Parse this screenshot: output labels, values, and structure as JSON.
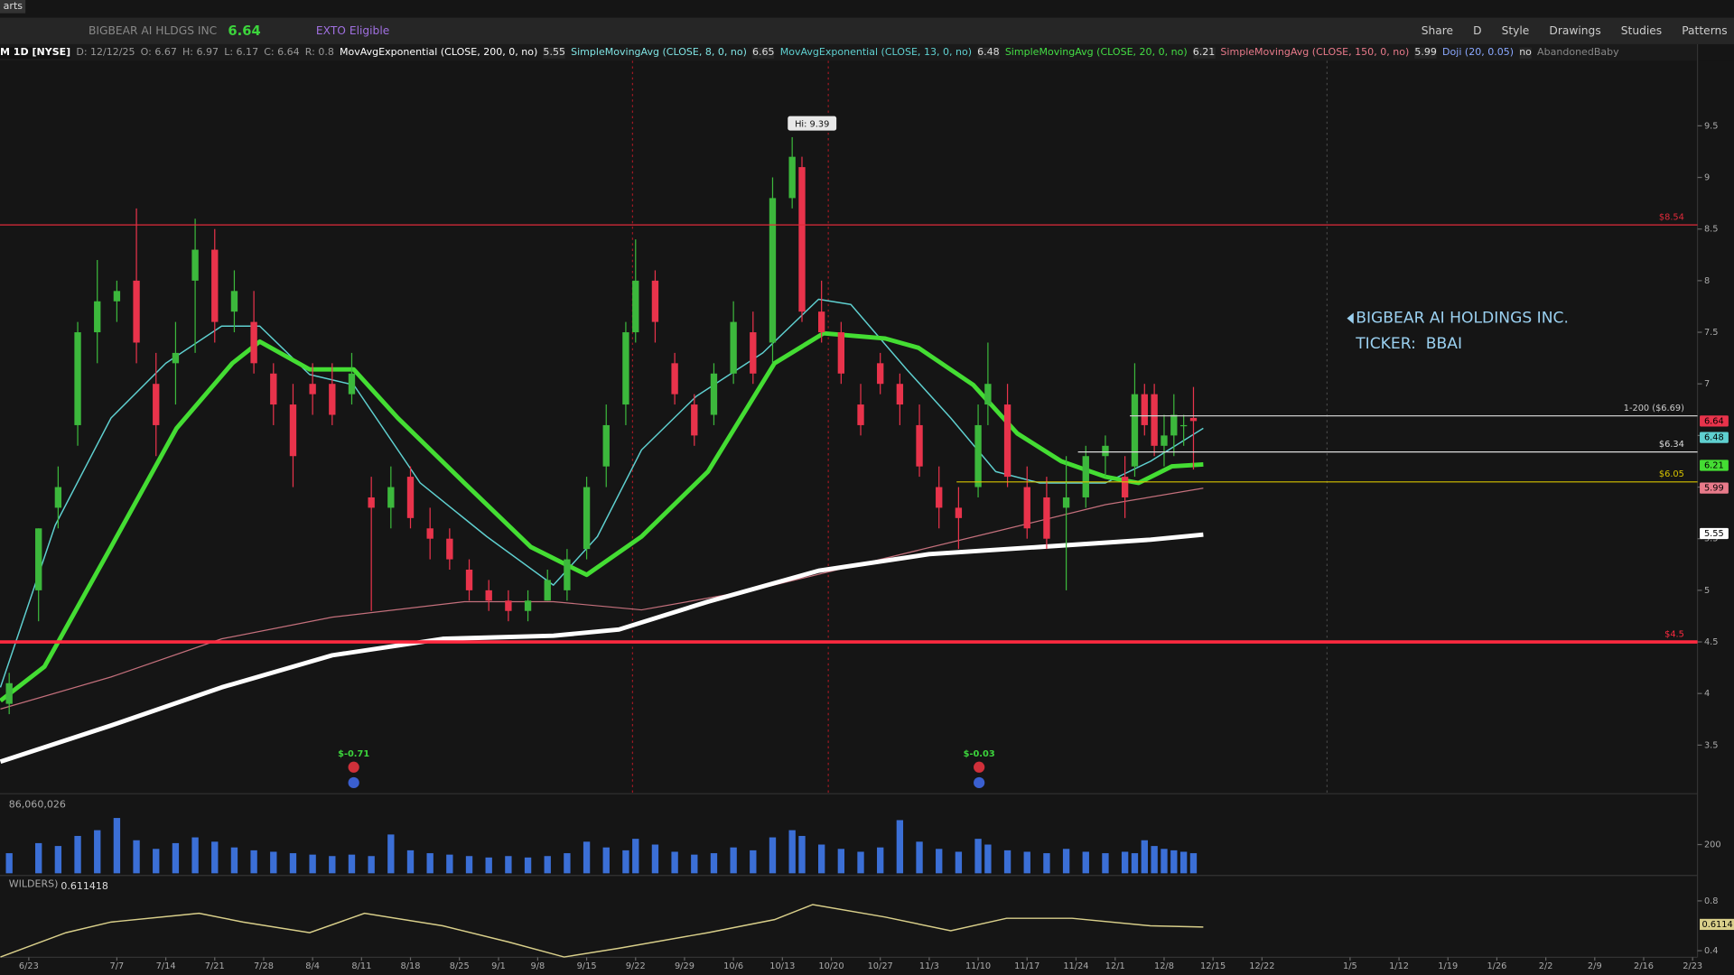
{
  "toolbar": {
    "tab": "arts",
    "symbol": "BIGBEAR AI HLDGS INC",
    "last": "6.64",
    "badge": "EXTO Eligible",
    "buttons": [
      "Share",
      "D",
      "Style",
      "Drawings",
      "Studies",
      "Patterns"
    ]
  },
  "header": {
    "period": "M 1D [NYSE]",
    "ohlc": [
      "D: 12/12/25",
      "O: 6.67",
      "H: 6.97",
      "L: 6.17",
      "C: 6.64",
      "R: 0.8"
    ],
    "studies": [
      {
        "label": "MovAvgExponential (CLOSE, 200, 0, no)",
        "value": "5.55",
        "color": "#ffffff"
      },
      {
        "label": "SimpleMovingAvg (CLOSE, 8, 0, no)",
        "value": "6.65",
        "color": "#7fe3e3"
      },
      {
        "label": "MovAvgExponential (CLOSE, 13, 0, no)",
        "value": "6.48",
        "color": "#5fd0d0"
      },
      {
        "label": "SimpleMovingAvg (CLOSE, 20, 0, no)",
        "value": "6.21",
        "color": "#44dd44"
      },
      {
        "label": "SimpleMovingAvg (CLOSE, 150, 0, no)",
        "value": "5.99",
        "color": "#e87a8a"
      },
      {
        "label": "Doji (20, 0.05)",
        "value": "no",
        "color": "#8aa8ff"
      },
      {
        "label": "AbandonedBaby",
        "value": "",
        "color": "#888888"
      }
    ]
  },
  "annotation": {
    "line1": "BIGBEAR AI HOLDINGS INC.",
    "line2": "TICKER:  BBAI"
  },
  "chart_data": [
    {
      "type": "candlestick",
      "xlim": [
        -2.94,
        170.5
      ],
      "ylim": [
        3.04,
        10.13
      ],
      "yticks": [
        9.5,
        9,
        8.5,
        8,
        7.5,
        7,
        6.5,
        6,
        5.5,
        5,
        4.5,
        4,
        3.5
      ],
      "up_color": "#3cb83c",
      "down_color": "#e8334b",
      "x": [
        -2,
        1,
        3,
        5,
        7,
        9,
        11,
        13,
        15,
        17,
        19,
        21,
        23,
        25,
        27,
        29,
        31,
        33,
        35,
        37,
        39,
        41,
        43,
        45,
        47,
        49,
        51,
        53,
        55,
        57,
        59,
        61,
        62,
        64,
        66,
        68,
        70,
        72,
        74,
        76,
        78,
        79,
        81,
        83,
        85,
        87,
        89,
        91,
        93,
        95,
        97,
        98,
        100,
        102,
        104,
        106,
        108,
        110,
        112,
        113,
        114,
        115,
        116,
        117,
        118,
        119
      ],
      "open": [
        3.9,
        5.0,
        5.8,
        6.6,
        7.5,
        7.8,
        8.0,
        7.0,
        7.2,
        8.0,
        8.3,
        7.7,
        7.6,
        7.1,
        6.8,
        7.0,
        7.0,
        6.9,
        5.9,
        5.8,
        6.1,
        5.6,
        5.5,
        5.2,
        5.0,
        4.9,
        4.8,
        4.9,
        5.0,
        5.4,
        6.2,
        6.8,
        7.5,
        8.0,
        7.2,
        6.8,
        6.7,
        7.1,
        7.5,
        7.4,
        8.8,
        9.1,
        7.7,
        7.5,
        6.8,
        7.2,
        7.0,
        6.6,
        6.0,
        5.8,
        6.0,
        6.8,
        6.8,
        6.0,
        5.9,
        5.8,
        5.9,
        6.3,
        6.1,
        6.2,
        6.9,
        6.9,
        6.4,
        6.5,
        6.6,
        6.67
      ],
      "high": [
        4.2,
        5.6,
        6.2,
        7.6,
        8.2,
        8.0,
        8.7,
        7.3,
        7.6,
        8.6,
        8.5,
        8.1,
        7.9,
        7.2,
        7.0,
        7.2,
        7.2,
        7.3,
        6.1,
        6.2,
        6.2,
        5.8,
        5.6,
        5.3,
        5.1,
        5.0,
        5.0,
        5.2,
        5.4,
        6.1,
        6.8,
        7.6,
        8.4,
        8.1,
        7.3,
        6.9,
        7.2,
        7.8,
        7.7,
        9.0,
        9.39,
        9.2,
        8.0,
        7.6,
        7.0,
        7.3,
        7.1,
        6.8,
        6.2,
        6.0,
        6.8,
        7.4,
        7.0,
        6.2,
        6.1,
        6.3,
        6.4,
        6.5,
        6.3,
        7.2,
        7.0,
        7.0,
        6.7,
        6.9,
        6.7,
        6.97
      ],
      "low": [
        3.8,
        4.7,
        5.6,
        6.4,
        7.2,
        7.6,
        7.2,
        6.3,
        6.8,
        7.3,
        7.4,
        7.5,
        7.1,
        6.6,
        6.0,
        6.7,
        6.6,
        6.8,
        4.8,
        5.6,
        5.6,
        5.3,
        5.2,
        4.9,
        4.8,
        4.7,
        4.7,
        4.9,
        4.9,
        5.3,
        6.0,
        6.6,
        7.4,
        7.4,
        6.8,
        6.4,
        6.6,
        7.0,
        7.0,
        7.2,
        8.7,
        7.6,
        7.4,
        7.0,
        6.5,
        6.9,
        6.6,
        6.1,
        5.6,
        5.4,
        5.9,
        6.6,
        6.0,
        5.5,
        5.4,
        5.0,
        5.8,
        6.1,
        5.7,
        6.1,
        6.5,
        6.3,
        6.2,
        6.3,
        6.4,
        6.17
      ],
      "close": [
        4.1,
        5.6,
        6.0,
        7.5,
        7.8,
        7.9,
        7.4,
        6.6,
        7.3,
        8.3,
        7.6,
        7.9,
        7.2,
        6.8,
        6.3,
        6.9,
        6.7,
        7.1,
        5.8,
        6.0,
        5.7,
        5.5,
        5.3,
        5.0,
        4.9,
        4.8,
        4.9,
        5.1,
        5.3,
        6.0,
        6.6,
        7.5,
        8.0,
        7.6,
        6.9,
        6.5,
        7.1,
        7.6,
        7.1,
        8.8,
        9.2,
        7.7,
        7.5,
        7.1,
        6.6,
        7.0,
        6.8,
        6.2,
        5.8,
        5.7,
        6.6,
        7.0,
        6.1,
        5.6,
        5.5,
        5.9,
        6.3,
        6.4,
        5.9,
        6.9,
        6.6,
        6.4,
        6.5,
        6.7,
        6.6,
        6.64
      ],
      "series": [
        {
          "color": "#c4707c",
          "width": 1,
          "x": [
            -2.9,
            8.4,
            19.7,
            31,
            44.5,
            53.6,
            62.6,
            73.9,
            87.5,
            98.8,
            110,
            120
          ],
          "values": [
            3.85,
            4.16,
            4.53,
            4.74,
            4.89,
            4.89,
            4.81,
            5.0,
            5.31,
            5.57,
            5.83,
            5.99
          ]
        },
        {
          "color": "#ffffff",
          "width": 4,
          "x": [
            -2.9,
            8.4,
            19.7,
            31,
            42.3,
            53.6,
            60.3,
            69.4,
            80.7,
            92,
            103.3,
            114.6,
            120
          ],
          "values": [
            3.34,
            3.69,
            4.06,
            4.37,
            4.53,
            4.56,
            4.62,
            4.89,
            5.19,
            5.35,
            5.42,
            5.49,
            5.54
          ]
        },
        {
          "color": "#5fd0d0",
          "width": 1.2,
          "x": [
            -2.9,
            2.7,
            8.4,
            14,
            19.7,
            23.6,
            28.7,
            33.2,
            40,
            46.8,
            53.6,
            58.1,
            62.6,
            68.2,
            75,
            80.7,
            84,
            89.7,
            94.2,
            98.8,
            103.3,
            110,
            114.6,
            120
          ],
          "values": [
            4.06,
            5.63,
            6.67,
            7.2,
            7.56,
            7.56,
            7.09,
            6.99,
            6.04,
            5.52,
            5.05,
            5.52,
            6.36,
            6.88,
            7.3,
            7.82,
            7.77,
            7.14,
            6.67,
            6.15,
            6.04,
            6.04,
            6.25,
            6.57
          ]
        },
        {
          "color": "#44dd33",
          "width": 4,
          "x": [
            -2.9,
            1.6,
            8.4,
            15.1,
            20.8,
            23.6,
            28.7,
            33.2,
            37.7,
            44.5,
            51.3,
            57,
            62.6,
            69.4,
            76.2,
            81.2,
            87.5,
            90.9,
            96.5,
            101,
            105.5,
            110,
            113.4,
            116.8,
            120
          ],
          "values": [
            3.93,
            4.26,
            5.42,
            6.57,
            7.2,
            7.41,
            7.14,
            7.14,
            6.67,
            6.04,
            5.42,
            5.15,
            5.52,
            6.15,
            7.2,
            7.49,
            7.44,
            7.35,
            6.99,
            6.52,
            6.25,
            6.1,
            6.04,
            6.2,
            6.22
          ]
        }
      ],
      "levels": [
        {
          "value": 8.54,
          "label": "$8.54",
          "color": "#e02a3a",
          "width": 1
        },
        {
          "value": 4.5,
          "label": "$4.5",
          "color": "#ff2a40",
          "width": 3
        },
        {
          "value": 6.69,
          "label": "1-200 ($6.69)",
          "color": "#cccccc",
          "width": 1,
          "x_start": 112.5
        },
        {
          "value": 6.34,
          "label": "$6.34",
          "color": "#dddddd",
          "width": 1,
          "x_start": 107.2
        },
        {
          "value": 6.05,
          "label": "$6.05",
          "color": "#d8c400",
          "width": 1,
          "x_start": 94.8
        }
      ],
      "price_markers": [
        {
          "value": 6.64,
          "color": "#e8334b"
        },
        {
          "value": 6.48,
          "color": "#5fd0d0"
        },
        {
          "value": 6.21,
          "color": "#44dd33"
        },
        {
          "value": 5.99,
          "color": "#e87a8a"
        },
        {
          "value": 5.55,
          "color": "#ffffff"
        }
      ],
      "hi_marker": {
        "x": 78,
        "value": 9.39,
        "label": "Hi: 9.39"
      },
      "earnings": [
        {
          "x": 33.2,
          "label": "$-0.71"
        },
        {
          "x": 97.1,
          "label": "$-0.03"
        }
      ]
    },
    {
      "type": "bar",
      "title": "86,060,026",
      "color": "#3b6fd6",
      "xlim": [
        -2.94,
        170.5
      ],
      "ylim": [
        0,
        400
      ],
      "yticks": [
        200
      ],
      "x": [
        -2,
        1,
        3,
        5,
        7,
        9,
        11,
        13,
        15,
        17,
        19,
        21,
        23,
        25,
        27,
        29,
        31,
        33,
        35,
        37,
        39,
        41,
        43,
        45,
        47,
        49,
        51,
        53,
        55,
        57,
        59,
        61,
        62,
        64,
        66,
        68,
        70,
        72,
        74,
        76,
        78,
        79,
        81,
        83,
        85,
        87,
        89,
        91,
        93,
        95,
        97,
        98,
        100,
        102,
        104,
        106,
        108,
        110,
        112,
        113,
        114,
        115,
        116,
        117,
        118,
        119
      ],
      "values": [
        140,
        210,
        190,
        260,
        300,
        385,
        230,
        170,
        210,
        250,
        220,
        180,
        160,
        150,
        140,
        130,
        120,
        130,
        120,
        270,
        160,
        140,
        130,
        120,
        110,
        120,
        110,
        120,
        140,
        220,
        180,
        160,
        240,
        200,
        150,
        130,
        140,
        180,
        160,
        250,
        300,
        260,
        200,
        170,
        150,
        180,
        370,
        220,
        170,
        150,
        240,
        200,
        160,
        150,
        140,
        170,
        150,
        140,
        150,
        140,
        230,
        190,
        170,
        160,
        150,
        140
      ]
    },
    {
      "type": "line",
      "title": "WILDERS)",
      "subtitle": "0.611418",
      "color": "#d9cf8a",
      "last_marker": 0.6114,
      "xlim": [
        -2.94,
        170.5
      ],
      "ylim": [
        0.347,
        0.844
      ],
      "yticks": [
        0.8,
        0.4
      ],
      "x": [
        -2.9,
        3.8,
        8.4,
        17.4,
        21.9,
        28.7,
        34.3,
        42.3,
        49,
        54.7,
        60.3,
        69.4,
        76.2,
        80.1,
        87.5,
        94.2,
        99.9,
        106.6,
        114.6,
        120
      ],
      "values": [
        0.35,
        0.545,
        0.63,
        0.7,
        0.63,
        0.545,
        0.7,
        0.6,
        0.47,
        0.35,
        0.42,
        0.545,
        0.65,
        0.77,
        0.67,
        0.56,
        0.66,
        0.66,
        0.6,
        0.59
      ],
      "xticks": [
        {
          "value": 0,
          "label": "6/23"
        },
        {
          "value": 9,
          "label": "7/7"
        },
        {
          "value": 14,
          "label": "7/14"
        },
        {
          "value": 19,
          "label": "7/21"
        },
        {
          "value": 24,
          "label": "7/28"
        },
        {
          "value": 29,
          "label": "8/4"
        },
        {
          "value": 34,
          "label": "8/11"
        },
        {
          "value": 39,
          "label": "8/18"
        },
        {
          "value": 44,
          "label": "8/25"
        },
        {
          "value": 48,
          "label": "9/1"
        },
        {
          "value": 52,
          "label": "9/8"
        },
        {
          "value": 57,
          "label": "9/15"
        },
        {
          "value": 62,
          "label": "9/22"
        },
        {
          "value": 67,
          "label": "9/29"
        },
        {
          "value": 72,
          "label": "10/6"
        },
        {
          "value": 77,
          "label": "10/13"
        },
        {
          "value": 82,
          "label": "10/20"
        },
        {
          "value": 87,
          "label": "10/27"
        },
        {
          "value": 92,
          "label": "11/3"
        },
        {
          "value": 97,
          "label": "11/10"
        },
        {
          "value": 102,
          "label": "11/17"
        },
        {
          "value": 107,
          "label": "11/24"
        },
        {
          "value": 111,
          "label": "12/1"
        },
        {
          "value": 116,
          "label": "12/8"
        },
        {
          "value": 121,
          "label": "12/15"
        },
        {
          "value": 126,
          "label": "12/22"
        },
        {
          "value": 135,
          "label": "1/5"
        },
        {
          "value": 140,
          "label": "1/12"
        },
        {
          "value": 145,
          "label": "1/19"
        },
        {
          "value": 150,
          "label": "1/26"
        },
        {
          "value": 155,
          "label": "2/2"
        },
        {
          "value": 160,
          "label": "2/9"
        },
        {
          "value": 165,
          "label": "2/16"
        },
        {
          "value": 170,
          "label": "2/23"
        }
      ]
    }
  ]
}
